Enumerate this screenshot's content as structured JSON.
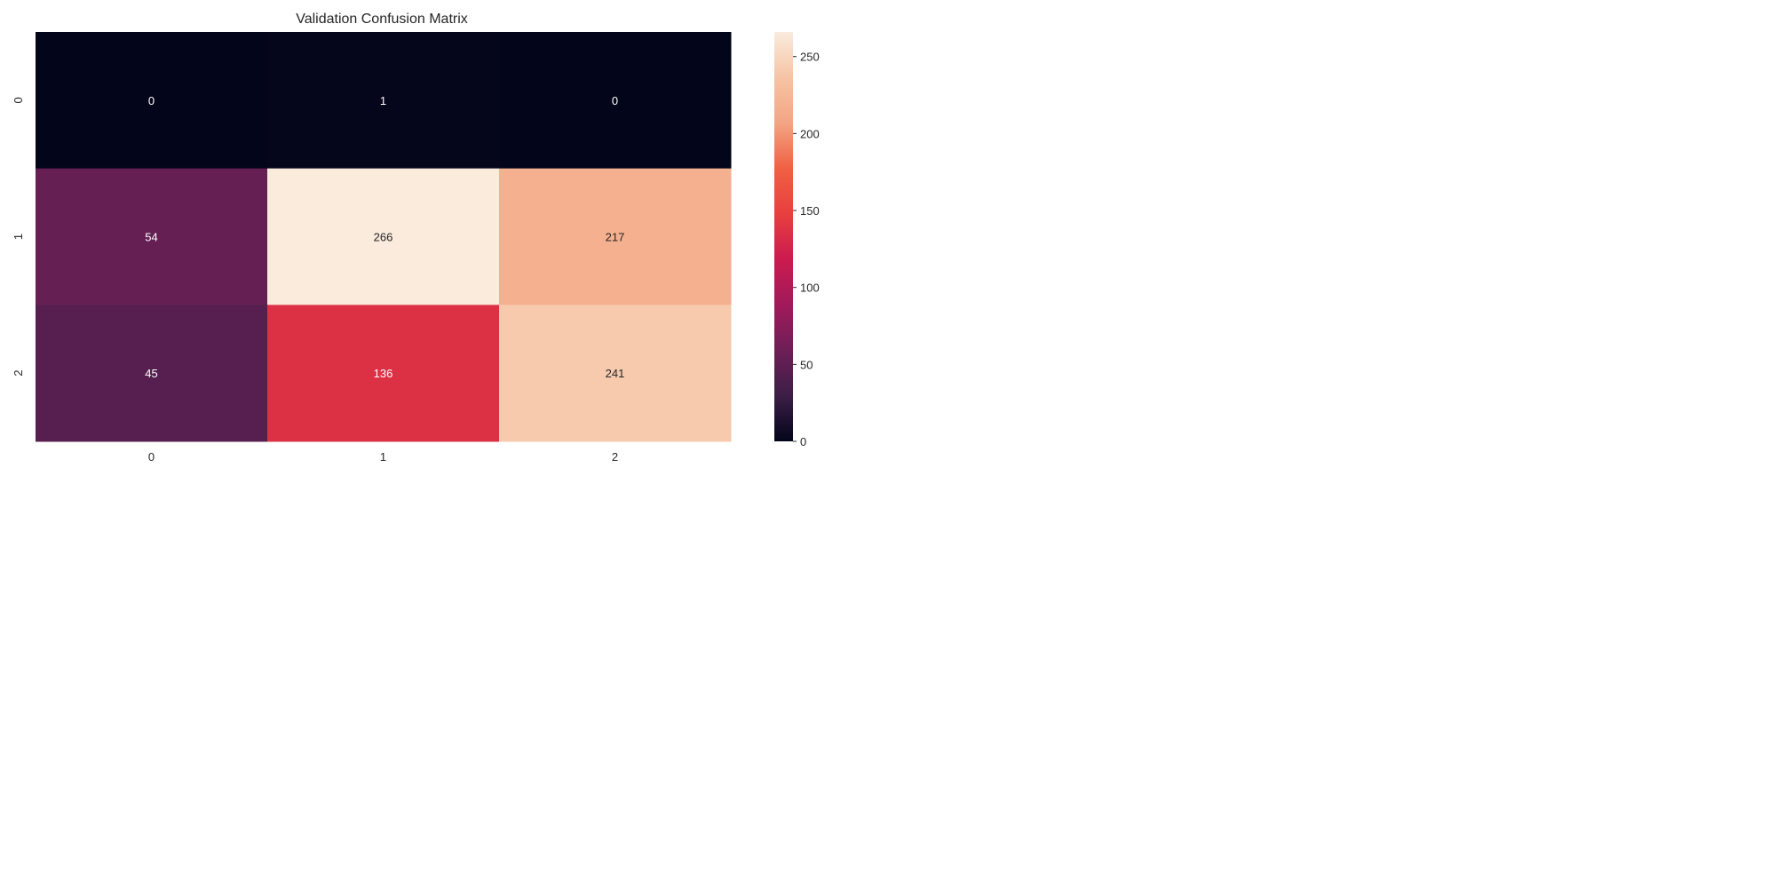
{
  "chart_data": {
    "type": "heatmap",
    "title": "Validation Confusion Matrix",
    "x_tick_labels": [
      "0",
      "1",
      "2"
    ],
    "y_tick_labels": [
      "0",
      "1",
      "2"
    ],
    "matrix": [
      [
        0,
        1,
        0
      ],
      [
        54,
        266,
        217
      ],
      [
        45,
        136,
        241
      ]
    ],
    "colormap": "rocket",
    "value_range": [
      0,
      266
    ],
    "colorbar_ticks": [
      0,
      50,
      100,
      150,
      200,
      250
    ],
    "colorbar_tick_labels": [
      "0",
      "50",
      "100",
      "150",
      "200",
      "250"
    ],
    "colorbar_stops": [
      "#03051a",
      "#3c1e47",
      "#6d1f56",
      "#a11a5b",
      "#cb1b4f",
      "#e83f3f",
      "#f06043",
      "#f3a583",
      "#f6c4a5",
      "#faebdd"
    ]
  }
}
